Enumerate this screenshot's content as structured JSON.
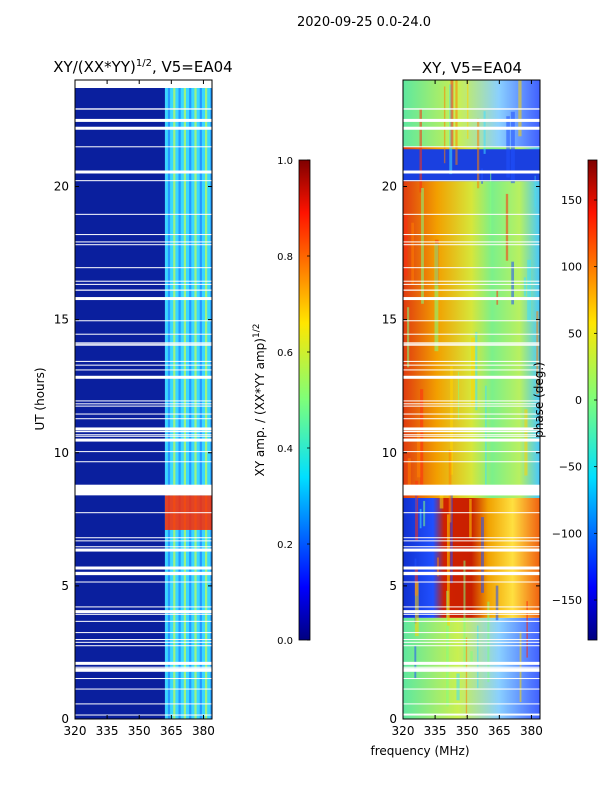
{
  "suptitle": "2020-09-25 0.0-24.0",
  "shared_xlabel": "frequency (MHz)",
  "chart_data": [
    {
      "type": "heatmap",
      "title_prefix": "XY/(XX*YY)",
      "title_exp": "1/2",
      "title_suffix": ", V5=EA04",
      "ylabel": "UT (hours)",
      "x_ticks": [
        320,
        335,
        350,
        365,
        380
      ],
      "xlim": [
        320,
        384
      ],
      "y_ticks": [
        0,
        5,
        10,
        15,
        20
      ],
      "ylim": [
        0,
        24
      ],
      "colorbar": {
        "label_prefix": "XY amp. / (XX*YY amp)",
        "label_exp": "1/2",
        "ticks": [
          "0.0",
          "0.2",
          "0.4",
          "0.6",
          "0.8",
          "1.0"
        ],
        "range": [
          0,
          1
        ]
      }
    },
    {
      "type": "heatmap",
      "title": "XY, V5=EA04",
      "ylabel": "",
      "x_ticks": [
        320,
        335,
        350,
        365,
        380
      ],
      "xlim": [
        320,
        384
      ],
      "y_ticks": [
        0,
        5,
        10,
        15,
        20
      ],
      "ylim": [
        0,
        24
      ],
      "colorbar": {
        "label": "phase (deg.)",
        "ticks": [
          150,
          100,
          50,
          0,
          -50,
          -100,
          -150
        ],
        "range": [
          -180,
          180
        ]
      }
    }
  ],
  "colors": {
    "jet_low": "#00007f",
    "jet_high": "#7f0000"
  }
}
